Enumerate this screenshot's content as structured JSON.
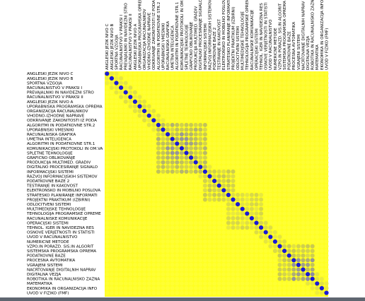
{
  "chart_data": {
    "type": "heatmap",
    "title": "",
    "xlabel": "",
    "ylabel": "",
    "labels": [
      "ANGLESKI JEZIK NIVO C",
      "ANGLESKI JEZIK NIVO B",
      "SPORTNA VZGOJA",
      "RACUNALNISTVO V PRAKSI I",
      "PREVAJALNIKI IN NAVIDEZNI STRO",
      "RACUNALNISTVO V PRAKSI II",
      "ANGLESKI JEZIK NIVO A",
      "UPORABNISKA PROGRAMSKA OPREMA",
      "ORGANIZACIJA RACUNALNIKOV",
      "VHODNO-IZHODNE NAPRAVE",
      "ODKRIVANJE ZAKONITOSTI IZ PODA",
      "ALGORITMI IN PODATKOVNE STR.2",
      "UPORABNISKI VMESNIKI",
      "RACUNALNISKA GRAFIKA",
      "UMETNA INTELIGENCA",
      "ALGORITMI IN PODATKOVNE STR.1",
      "KOMUNIKACIJSKI PROTOKOLI IN OM.VA",
      "SPLETNE TEHNOLOGIJE",
      "GRAFICNO OBLIKOVANJE",
      "PRODUKCIJA MULTIMED. GRADIV",
      "DIGITALNO PROCESIRANJE SIGNALO",
      "INFORMACIJSKI SISTEMI",
      "RAZVOJ INFORMACIJSKIH SISTEMOV",
      "PODATKOVNE BAZE 2",
      "TESTIRANJE IN KAKOVOST",
      "ELEKTRONSKO IN MOBILNO POSLOVA",
      "STRATESKO PLANIRANJE INFORMATI",
      "PROJEKTNI PRAKTIKUM (IZBIRNI)",
      "ODLOCITVENI SISTEMI",
      "MULTIMEDIJSKE TEHNOLOGIJE",
      "TEHNOLOGIJA PROGRAMSKE OPREME",
      "RACUNALNISKE KOMUNIKACIJE",
      "OPERACIJSKI SISTEMI",
      "TEHNOL. IGER IN NAVIDEZNA RES",
      "OSNOVE VERJETNOSTI IN STATISTI",
      "UVOD V RACUNALNISTVO",
      "NUMERICNE METODE",
      "VZPO.IN PORAZD. SIS.IN ALGORIT",
      "SISTEMSKA PROGRAMSKA OPREMA",
      "PODATKOVNE BAZE",
      "PROCESNA AVTOMATIKA",
      "VGRAJENI SISTEMI",
      "NACRTOVANJE DIGITALNIH NAPRAV",
      "DIGITALNA VEZJA",
      "ROBOTIKA IN RACUNALNISKO ZAZNA",
      "MATEMATIKA",
      "EKONOMIKA IN ORGANIZACIJA INFO",
      "UVOD V FIZIKO (FMF)"
    ],
    "x_tick_labels": [
      "ANGLESKI JEZIK NIVO C",
      "ANGLESKI JEZIK NIVO B",
      "SPORTNA VZGOJA",
      "RACUNALNISTVO V PRAKSI I",
      "PREVAJALNIKI IN NAVIDEZNI STRO",
      "RACUNALNISTVO V PRAKSI II",
      "ANGLESKI JEZIK NIVO A",
      "UPORABNISKA PROGRAMSKA OPREMA",
      "ORGANIZACIJA RACUNALNIKOV",
      "VHODNO-IZHODNE NAPRAVE",
      "ODKRIVANJE ZAKONITOSTI IZ PODA",
      "ALGORITMI IN PODATKOVNE STR.2",
      "UPORABNISKI VMESNIKI",
      "RACUNALNISKA GRAFIKA",
      "UMETNA INTELIGENCA",
      "ALGORITMI IN PODATKOVNE STR.1",
      "KOMUNIKACIJSKI PROTOKOLI IN OM.VA",
      "SPLETNE TEHNOLOGIJE",
      "GRAFICNO OBLIKOVANJE",
      "PRODUKCIJA MULTIMED. GRADIV",
      "DIGITALNO PROCESIRANJE SIGNALO",
      "INFORMACIJSKI SISTEMI",
      "RAZVOJ INFORMACIJSKIH SISTEMOV",
      "PODATKOVNE BAZE 2",
      "TESTIRANJE IN KAKOVOST",
      "ELEKTRONSKO IN MOBILNO POSLOVA",
      "STRATESKO PLANIRANJE INFORMATI",
      "PROJEKTNI PRAKTIKUM (IZBIRNI)",
      "ODLOCITVENI SISTEMI",
      "MULTIMEDIJSKE TEHNOLOGIJE",
      "TEHNOLOGIJA PROGRAMSKE OPREME",
      "RACUNALNISKE KOMUNIKACIJE",
      "OPERACIJSKI SISTEMI",
      "TEHNOL. IGER IN NAVIDEZNA RES",
      "OSNOVE VERJETNOSTI IN STATISTI",
      "UVOD V RACUNALNISTVO",
      "NUMERICNE METODE",
      "VZPO.IN PORAZD. SIS.IN ALGORIT",
      "SISTEMSKA PROGRAMSKA OPREMA",
      "PODATKOVNE BAZE",
      "PROCESNA AVTOMATIKA",
      "VGRAJENI SISTEMI",
      "NACRTOVANJE DIGITALNIH NAPRAV",
      "DIGITALNA VEZJA",
      "ROBOTIKA IN RACUNALNISKO ZAZNA",
      "MATEMATIKA",
      "EKONOMIKA IN ORGANIZACIJA INFO",
      "UVOD V FIZIKO (FMF)"
    ],
    "value_range": [
      0,
      1
    ],
    "diagonal_value": 1,
    "clusters": [
      {
        "start": 11,
        "end": 21,
        "strength": 0.55
      },
      {
        "start": 13,
        "end": 18,
        "strength": 0.72
      },
      {
        "start": 21,
        "end": 27,
        "strength": 0.4
      },
      {
        "start": 26,
        "end": 33,
        "strength": 0.3
      },
      {
        "start": 37,
        "end": 44,
        "strength": 0.42
      },
      {
        "start": 40,
        "end": 44,
        "strength": 0.78
      }
    ],
    "colors": {
      "background": "#ffff22",
      "low": "#ffff33",
      "mid": "#c8c853",
      "high": "#8a8aa8",
      "max": "#1a1ad6"
    },
    "grid": false
  }
}
